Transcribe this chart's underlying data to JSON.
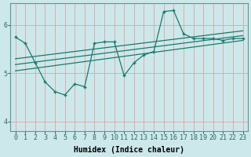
{
  "background_color": "#cce8ea",
  "grid_color": "#f0b8b8",
  "line_color": "#1a7a6e",
  "xlabel": "Humidex (Indice chaleur)",
  "ylim": [
    3.8,
    6.45
  ],
  "xlim": [
    -0.5,
    23.5
  ],
  "yticks": [
    4,
    5,
    6
  ],
  "xticks": [
    0,
    1,
    2,
    3,
    4,
    5,
    6,
    7,
    8,
    9,
    10,
    11,
    12,
    13,
    14,
    15,
    16,
    17,
    18,
    19,
    20,
    21,
    22,
    23
  ],
  "series1_x": [
    0,
    1,
    2,
    3,
    4,
    5,
    6,
    7,
    8,
    9,
    10,
    11,
    12,
    13,
    14,
    15,
    16,
    17,
    18,
    19,
    20,
    21,
    22,
    23
  ],
  "series1_y": [
    5.75,
    5.62,
    5.22,
    4.82,
    4.62,
    4.55,
    4.78,
    4.72,
    5.62,
    5.65,
    5.65,
    4.95,
    5.22,
    5.38,
    5.45,
    6.28,
    6.3,
    5.82,
    5.72,
    5.72,
    5.72,
    5.68,
    5.72,
    5.72
  ],
  "series2_x": [
    0,
    23
  ],
  "series2_y": [
    5.3,
    5.88
  ],
  "series3_x": [
    0,
    23
  ],
  "series3_y": [
    5.18,
    5.78
  ],
  "series4_x": [
    0,
    23
  ],
  "series4_y": [
    5.05,
    5.68
  ],
  "tick_fontsize": 6,
  "xlabel_fontsize": 7
}
